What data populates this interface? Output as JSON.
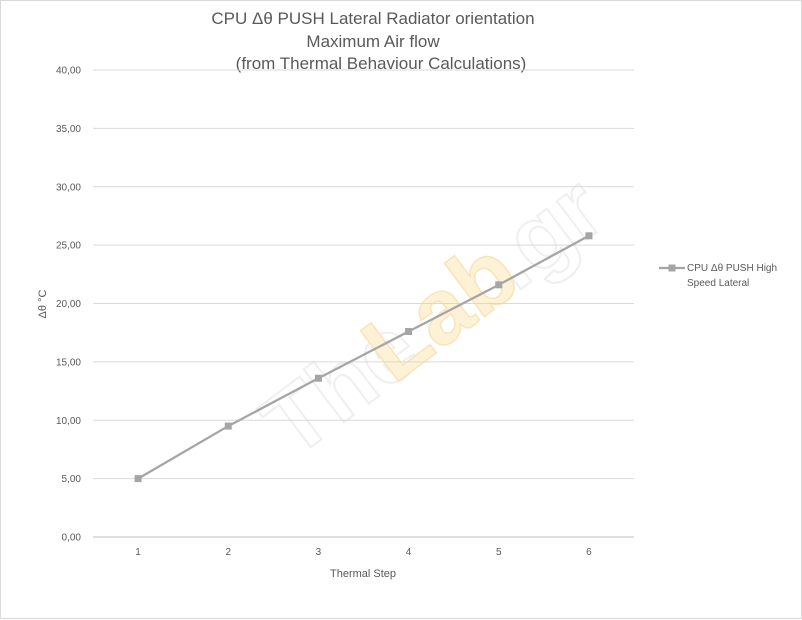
{
  "chart_data": {
    "type": "line",
    "title_lines": [
      "CPU  Δθ   PUSH Lateral  Radiator orientation",
      "Maximum Air flow",
      "(from Thermal Behaviour Calculations)"
    ],
    "xlabel": "Thermal Step",
    "ylabel": "Δθ °C",
    "categories": [
      "1",
      "2",
      "3",
      "4",
      "5",
      "6"
    ],
    "ylim": [
      0,
      40
    ],
    "yticks": [
      "0,00",
      "5,00",
      "10,00",
      "15,00",
      "20,00",
      "25,00",
      "30,00",
      "35,00",
      "40,00"
    ],
    "series": [
      {
        "name_lines": [
          "CPU Δθ PUSH High",
          "Speed Lateral"
        ],
        "values": [
          5.0,
          9.5,
          13.6,
          17.6,
          21.6,
          25.8
        ],
        "color": "#a5a5a5",
        "marker": "square"
      }
    ],
    "grid": true,
    "legend_position": "right",
    "watermark": "TheLab.gr"
  }
}
